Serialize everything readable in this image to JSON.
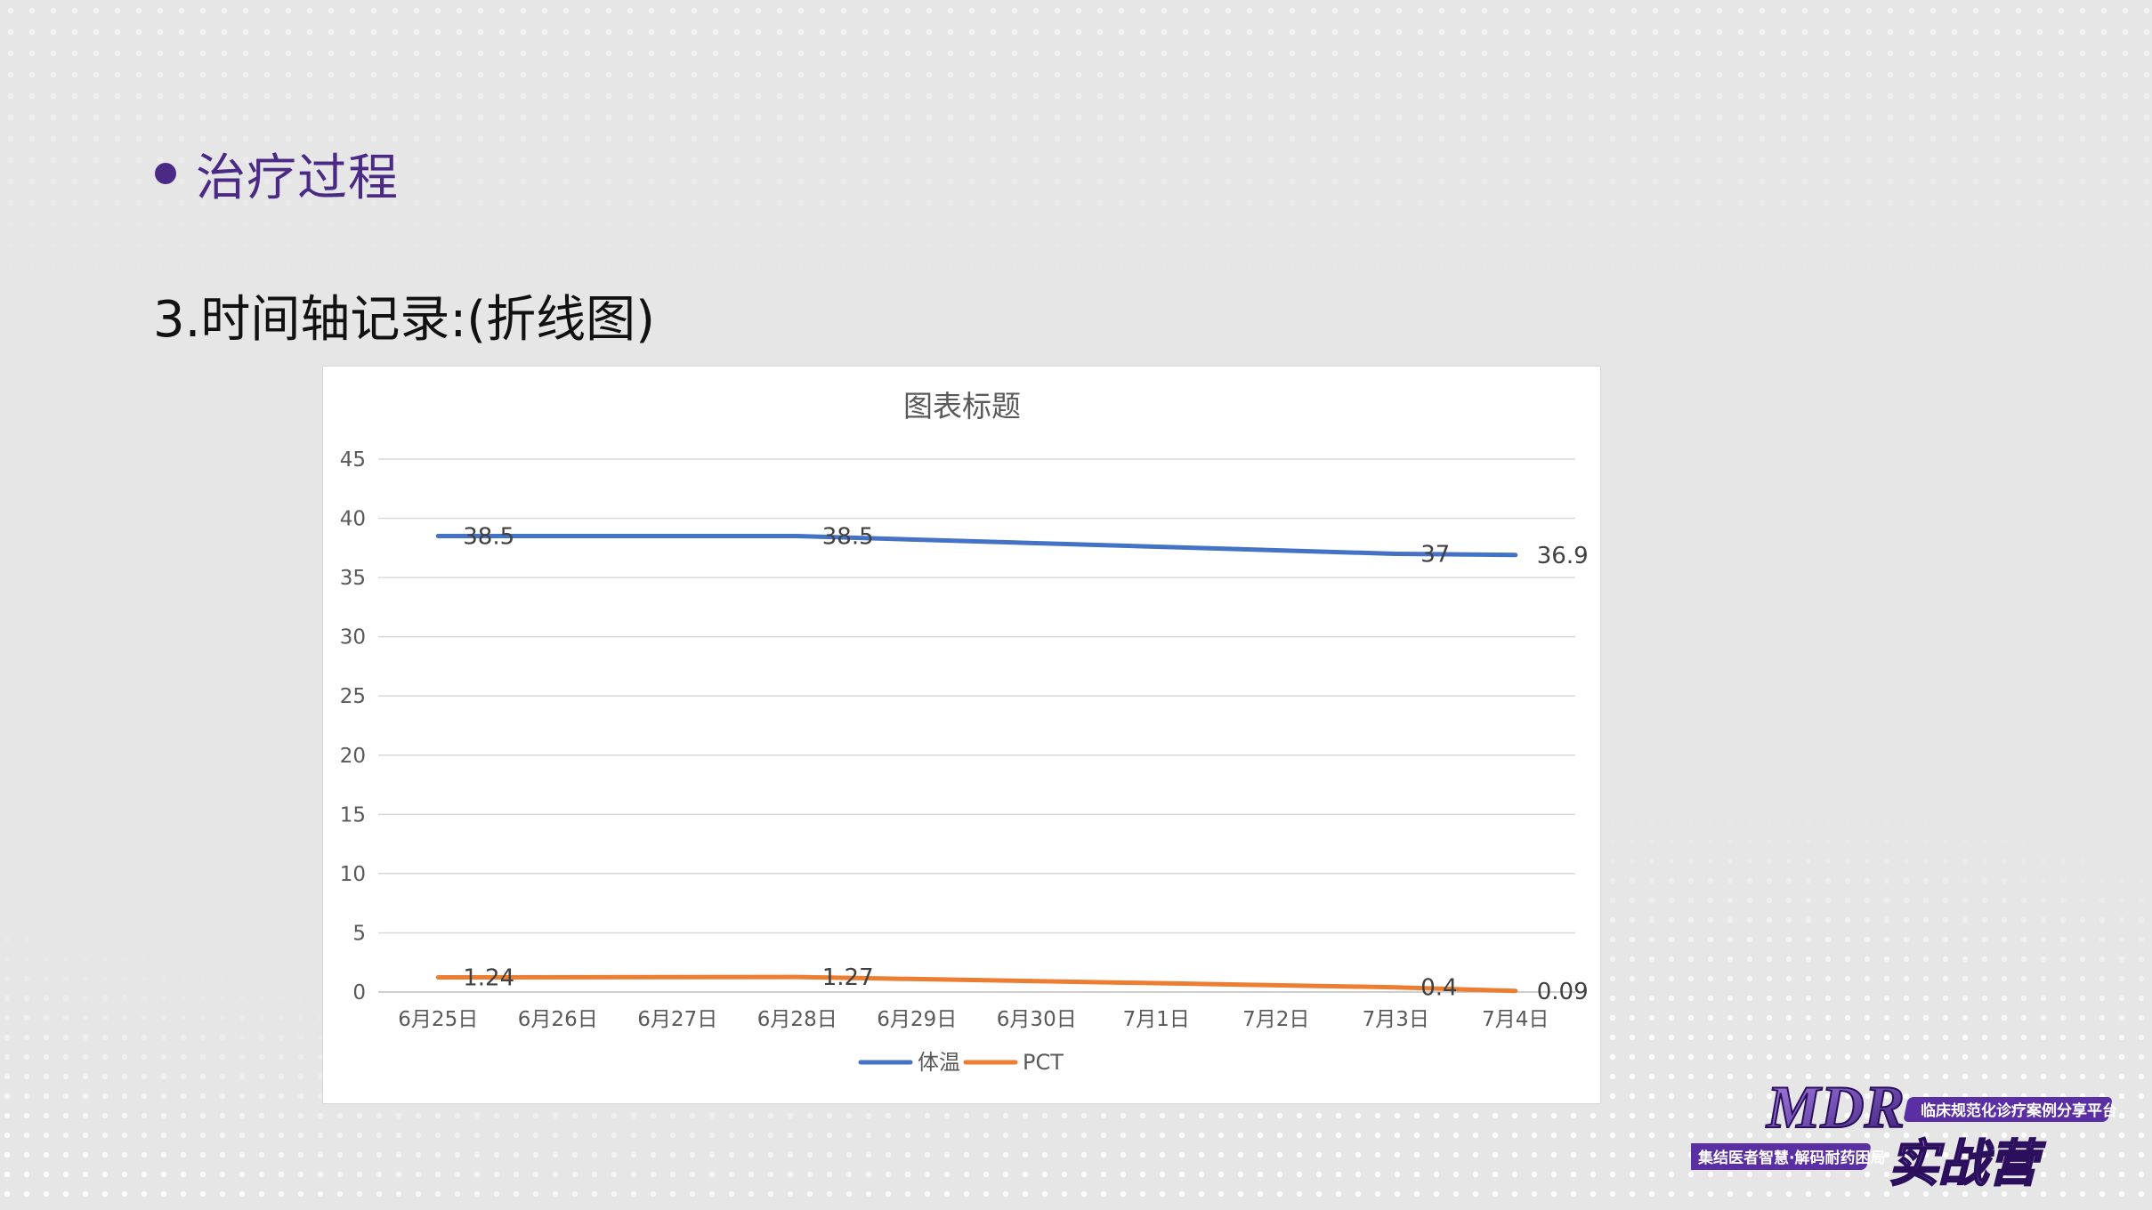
{
  "slide": {
    "section_title": "治疗过程",
    "subtitle": "3.时间轴记录:(折线图)"
  },
  "colors": {
    "accent_purple": "#4b2a86",
    "series_blue": "#4472c4",
    "series_orange": "#ed7d31"
  },
  "logo": {
    "brand": "MDR",
    "tagline_top": "临床规范化诊疗案例分享平台",
    "tagline_bottom": "集结医者智慧·解码耐药困局",
    "name": "实战营"
  },
  "chart_data": {
    "type": "line",
    "title": "图表标题",
    "xlabel": "",
    "ylabel": "",
    "ylim": [
      0,
      45
    ],
    "yticks": [
      0,
      5,
      10,
      15,
      20,
      25,
      30,
      35,
      40,
      45
    ],
    "grid": true,
    "legend": "bottom",
    "categories": [
      "6月25日",
      "6月26日",
      "6月27日",
      "6月28日",
      "6月29日",
      "6月30日",
      "7月1日",
      "7月2日",
      "7月3日",
      "7月4日"
    ],
    "series": [
      {
        "name": "体温",
        "color": "#4472c4",
        "points": [
          {
            "x": "6月25日",
            "y": 38.5
          },
          {
            "x": "6月28日",
            "y": 38.5
          },
          {
            "x": "7月3日",
            "y": 37
          },
          {
            "x": "7月4日",
            "y": 36.9
          }
        ],
        "labels": [
          "38.5",
          "38.5",
          "37",
          "36.9"
        ]
      },
      {
        "name": "PCT",
        "color": "#ed7d31",
        "points": [
          {
            "x": "6月25日",
            "y": 1.24
          },
          {
            "x": "6月28日",
            "y": 1.27
          },
          {
            "x": "7月3日",
            "y": 0.4
          },
          {
            "x": "7月4日",
            "y": 0.09
          }
        ],
        "labels": [
          "1.24",
          "1.27",
          "0.4",
          "0.09"
        ]
      }
    ]
  }
}
